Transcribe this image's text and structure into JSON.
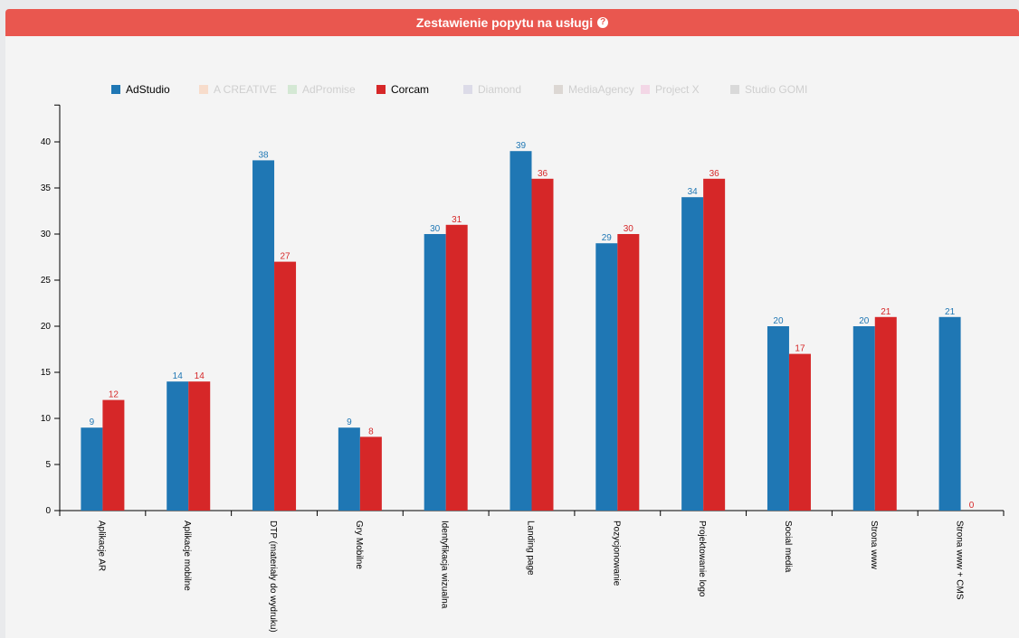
{
  "panel": {
    "title": "Zestawienie popytu na usługi",
    "help_icon": "question-circle-icon",
    "header_color": "#e9574f"
  },
  "chart_data": {
    "type": "bar",
    "title": "",
    "xlabel": "",
    "ylabel": "",
    "ylim": [
      0,
      44
    ],
    "yticks": [
      0,
      5,
      10,
      15,
      20,
      25,
      30,
      35,
      40
    ],
    "grid": false,
    "legend_position": "top",
    "categories": [
      "Aplikacje AR",
      "Aplikacje mobilne",
      "DTP (materiały do wydruku)",
      "Gry Mobilne",
      "Identyfikacja wizualna",
      "Landing page",
      "Pozycjonowanie",
      "Projektowanie logo",
      "Social media",
      "Strona www",
      "Strona www + CMS"
    ],
    "series": [
      {
        "name": "AdStudio",
        "color": "#1f77b4",
        "active": true,
        "values": [
          9,
          14,
          38,
          9,
          30,
          39,
          29,
          34,
          20,
          20,
          21
        ]
      },
      {
        "name": "A CREATIVE",
        "color": "#f7dccb",
        "active": false
      },
      {
        "name": "AdPromise",
        "color": "#d4e8d4",
        "active": false
      },
      {
        "name": "Corcam",
        "color": "#d62728",
        "active": true,
        "values": [
          12,
          14,
          27,
          8,
          31,
          36,
          30,
          36,
          17,
          21,
          0
        ]
      },
      {
        "name": "Diamond",
        "color": "#dcdbe8",
        "active": false
      },
      {
        "name": "MediaAgency",
        "color": "#dcd7d3",
        "active": false
      },
      {
        "name": "Project X",
        "color": "#f3d7e6",
        "active": false
      },
      {
        "name": "Studio GOMI",
        "color": "#d9d9d9",
        "active": false
      }
    ]
  }
}
